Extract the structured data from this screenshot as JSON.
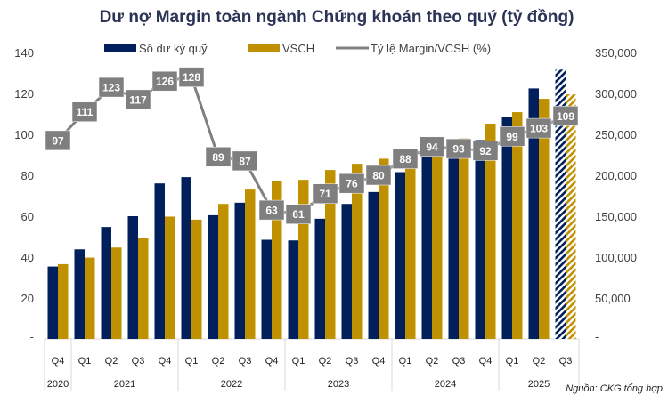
{
  "chart_data": {
    "type": "bar+line",
    "title": "Dư nợ Margin toàn ngành Chứng khoán theo quý (tỷ đồng)",
    "source": "Nguồn: CKG tổng hợp",
    "quarters": [
      "Q4",
      "Q1",
      "Q2",
      "Q3",
      "Q4",
      "Q1",
      "Q2",
      "Q3",
      "Q4",
      "Q1",
      "Q2",
      "Q3",
      "Q4",
      "Q1",
      "Q2",
      "Q3",
      "Q4",
      "Q1",
      "Q2",
      "Q3"
    ],
    "years": [
      {
        "label": "2020",
        "count": 1
      },
      {
        "label": "2021",
        "count": 4
      },
      {
        "label": "2022",
        "count": 4
      },
      {
        "label": "2023",
        "count": 4
      },
      {
        "label": "2024",
        "count": 4
      },
      {
        "label": "2025",
        "count": 3
      }
    ],
    "left_axis": {
      "range": [
        0,
        140
      ],
      "ticks": [
        "-",
        "20",
        "40",
        "60",
        "80",
        "100",
        "120",
        "140"
      ]
    },
    "right_axis": {
      "range": [
        0,
        350000
      ],
      "ticks": [
        "-",
        "50,000",
        "100,000",
        "150,000",
        "200,000",
        "250,000",
        "300,000",
        "350,000"
      ]
    },
    "grid": false,
    "legend_position": "top",
    "hatched_last_category": true,
    "series": [
      {
        "name": "Số dư ký quỹ",
        "type": "bar",
        "axis": "right",
        "color": "#001f5b",
        "values": [
          88500,
          109500,
          136800,
          150000,
          190000,
          197700,
          151200,
          166500,
          121200,
          120400,
          146900,
          165000,
          179500,
          203800,
          228000,
          228000,
          243000,
          271600,
          306100,
          329000
        ]
      },
      {
        "name": "VSCH",
        "type": "bar",
        "axis": "right",
        "color": "#bf9000",
        "values": [
          91400,
          99400,
          111700,
          123300,
          149500,
          145800,
          165000,
          182500,
          192600,
          194400,
          206400,
          214000,
          220200,
          231500,
          242500,
          245000,
          263000,
          277100,
          293400,
          298900
        ]
      },
      {
        "name": "Tỷ lệ Margin/VCSH (%)",
        "type": "line",
        "axis": "left",
        "color": "#808080",
        "label_bg": "#7f7f7f",
        "values": [
          97,
          111,
          123,
          117,
          126,
          128,
          89,
          87,
          63,
          61,
          71,
          76,
          80,
          88,
          94,
          93,
          92,
          99,
          103,
          109
        ]
      }
    ]
  }
}
